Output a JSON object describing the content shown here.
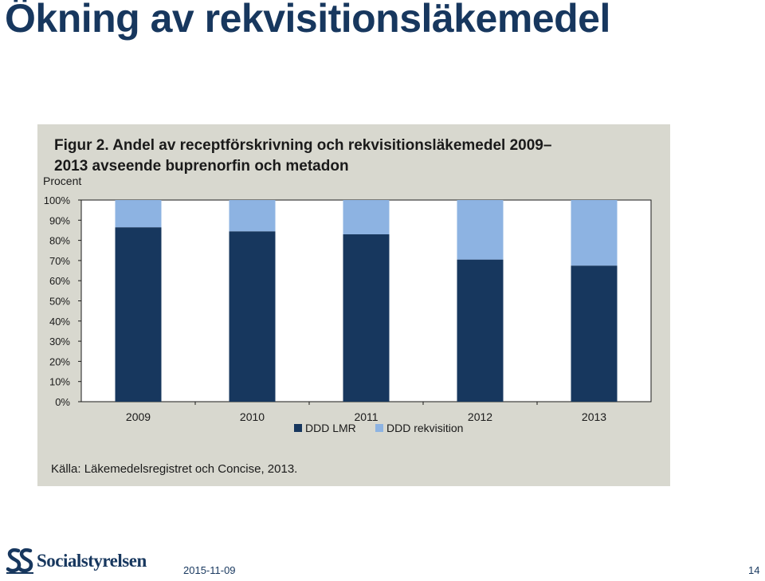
{
  "slide": {
    "title": "Ökning av rekvisitionsläkemedel",
    "date": "2015-11-09",
    "page_number": "14",
    "logo_text": "Socialstyrelsen"
  },
  "chart_data": {
    "type": "bar",
    "stacked": true,
    "title_line1": "Figur 2. Andel av receptförskrivning och rekvisitionsläkemedel 2009–",
    "title_line2": "2013 avseende buprenorfin och metadon",
    "ylabel": "Procent",
    "xlabel": "",
    "categories": [
      "2009",
      "2010",
      "2011",
      "2012",
      "2013"
    ],
    "series": [
      {
        "name": "DDD LMR",
        "color": "#17375e",
        "values": [
          86.5,
          84.5,
          83,
          70.5,
          67.5
        ]
      },
      {
        "name": "DDD rekvisition",
        "color": "#8db3e2",
        "values": [
          13.5,
          15.5,
          17,
          29.5,
          32.5
        ]
      }
    ],
    "ylim": [
      0,
      100
    ],
    "y_ticks": [
      "0%",
      "10%",
      "20%",
      "30%",
      "40%",
      "50%",
      "60%",
      "70%",
      "80%",
      "90%",
      "100%"
    ],
    "grid": false,
    "legend_position": "bottom",
    "source": "Källa: Läkemedelsregistret och Concise, 2013."
  }
}
